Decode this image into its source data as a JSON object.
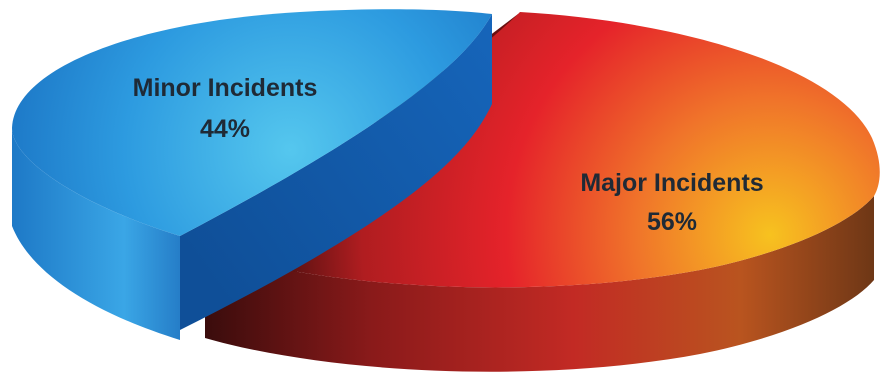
{
  "chart_data": {
    "type": "pie",
    "style": "3d-exploded",
    "slices": [
      {
        "label": "Minor Incidents",
        "value": 44,
        "display": "44%",
        "color": "#2a8fdc"
      },
      {
        "label": "Major Incidents",
        "value": 56,
        "display": "56%",
        "color": "#e5232a"
      }
    ],
    "legend": "none",
    "title": ""
  }
}
